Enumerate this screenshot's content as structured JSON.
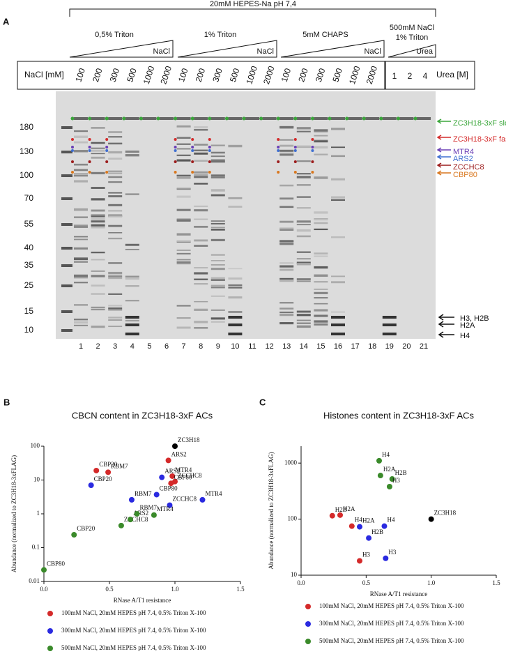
{
  "panel_a": {
    "letter": "A",
    "buffer": "20mM HEPES-Na pH 7,4",
    "groups": [
      {
        "label": "0,5% Triton",
        "gradient": "NaCl"
      },
      {
        "label": "1% Triton",
        "gradient": "NaCl"
      },
      {
        "label": "5mM CHAPS",
        "gradient": "NaCl"
      },
      {
        "label_lines": [
          "500mM NaCl",
          "1% Triton"
        ],
        "gradient": "Urea"
      }
    ],
    "nacl_header": "NaCl [mM]",
    "nacl_values": [
      100,
      200,
      300,
      500,
      1000,
      2000,
      100,
      200,
      300,
      500,
      1000,
      2000,
      100,
      200,
      300,
      500,
      1000,
      2000
    ],
    "urea_values": [
      1,
      2,
      4
    ],
    "urea_header": "Urea [M]",
    "markers": [
      180,
      130,
      100,
      70,
      55,
      40,
      35,
      25,
      15,
      10
    ],
    "lanes": [
      1,
      2,
      3,
      4,
      5,
      6,
      7,
      8,
      9,
      10,
      11,
      12,
      13,
      14,
      15,
      16,
      17,
      18,
      19,
      20,
      21
    ],
    "bands": [
      {
        "label": "ZC3H18-3xF slow",
        "color": "#3aa63a"
      },
      {
        "label": "ZC3H18-3xF fast",
        "color": "#d42a2a"
      },
      {
        "label": "MTR4",
        "color": "#6a3fb5"
      },
      {
        "label": "ARS2",
        "color": "#3f6fd1"
      },
      {
        "label": "ZCCHC8",
        "color": "#9c1c1c"
      },
      {
        "label": "CBP80",
        "color": "#d9771e"
      }
    ],
    "histones": [
      "H3, H2B",
      "H2A",
      "H4"
    ]
  },
  "chart_data": [
    {
      "type": "scatter",
      "panel": "B",
      "title": "CBCN content in ZC3H18-3xF ACs",
      "xlabel": "RNase A/T1 resistance",
      "ylabel": "Abundance (normalized to ZC3H18-3xFLAG)",
      "xlim": [
        0,
        1.5
      ],
      "xticks": [
        {
          "value": 0,
          "label": "0.0"
        },
        0.5,
        {
          "value": 1,
          "label": "1.0"
        },
        1.5
      ],
      "ylim": [
        0.01,
        100
      ],
      "yticks": [
        0.01,
        0.1,
        1,
        10,
        100
      ],
      "log_y": true,
      "legend": "bottom",
      "series": [
        {
          "name": "100mM NaCl, 20mM HEPES pH 7.4, 0.5% Triton X-100",
          "color": "#d42a2a",
          "x": [
            0.4,
            0.49,
            0.95,
            0.98,
            1.0,
            0.97
          ],
          "values": [
            19,
            17,
            38,
            13,
            9,
            8
          ],
          "point_labels": [
            "CBP20",
            "RBM7",
            "ARS2",
            "MTR4",
            "ZCCHC8",
            "CBP80"
          ]
        },
        {
          "name": "300mM NaCl, 20mM HEPES pH 7.4, 0.5% Triton X-100",
          "color": "#2a2ae0",
          "x": [
            0.36,
            0.9,
            0.67,
            0.86,
            0.96,
            1.21
          ],
          "values": [
            7,
            12,
            2.6,
            3.7,
            1.8,
            2.6
          ],
          "point_labels": [
            "CBP20",
            "ARS2",
            "RBM7",
            "CBP80",
            "ZCCHC8",
            "MTR4"
          ]
        },
        {
          "name": "500mM NaCl, 20mM HEPES pH 7.4, 0.5% Triton X-100",
          "color": "#3a8a2a",
          "x": [
            0.0,
            0.23,
            0.59,
            0.66,
            0.71,
            0.84
          ],
          "values": [
            0.022,
            0.24,
            0.45,
            0.68,
            1.0,
            0.92
          ],
          "point_labels": [
            "CBP80",
            "CBP20",
            "ZCCHC8",
            "ARS2",
            "RBM7",
            "MTR4"
          ]
        },
        {
          "color": "#000000",
          "x": [
            1.0
          ],
          "values": [
            100
          ],
          "point_labels": [
            "ZC3H18"
          ]
        }
      ]
    },
    {
      "type": "scatter",
      "panel": "C",
      "title": "Histones content in ZC3H18-3xF ACs",
      "xlabel": "RNase A/T1 resistance",
      "ylabel": "Abundance (normalized to ZC3H18-3xFLAG)",
      "xlim": [
        0,
        1.5
      ],
      "xticks": [
        {
          "value": 0,
          "label": "0.0"
        },
        0.5,
        {
          "value": 1,
          "label": "1.0"
        },
        1.5
      ],
      "ylim": [
        10,
        2000
      ],
      "yticks": [
        10,
        100,
        1000
      ],
      "log_y": true,
      "legend": "bottom",
      "series": [
        {
          "name": "100mM NaCl, 20mM HEPES pH 7.4, 0.5% Triton X-100",
          "color": "#d42a2a",
          "x": [
            0.24,
            0.3,
            0.39,
            0.45
          ],
          "values": [
            115,
            118,
            75,
            18
          ],
          "point_labels": [
            "H2B",
            "H2A",
            "H4",
            "H3"
          ]
        },
        {
          "name": "300mM NaCl, 20mM HEPES pH 7.4, 0.5% Triton X-100",
          "color": "#2a2ae0",
          "x": [
            0.45,
            0.52,
            0.64,
            0.65
          ],
          "values": [
            73,
            46,
            75,
            20
          ],
          "point_labels": [
            "H2A",
            "H2B",
            "H4",
            "H3"
          ]
        },
        {
          "name": "500mM NaCl, 20mM HEPES pH 7.4, 0.5% Triton X-100",
          "color": "#3a8a2a",
          "x": [
            0.6,
            0.61,
            0.7,
            0.68
          ],
          "values": [
            1100,
            600,
            520,
            380
          ],
          "point_labels": [
            "H4",
            "H2A",
            "H2B",
            "H3"
          ]
        },
        {
          "color": "#000000",
          "x": [
            1.0
          ],
          "values": [
            100
          ],
          "point_labels": [
            "ZC3H18"
          ]
        }
      ]
    }
  ]
}
